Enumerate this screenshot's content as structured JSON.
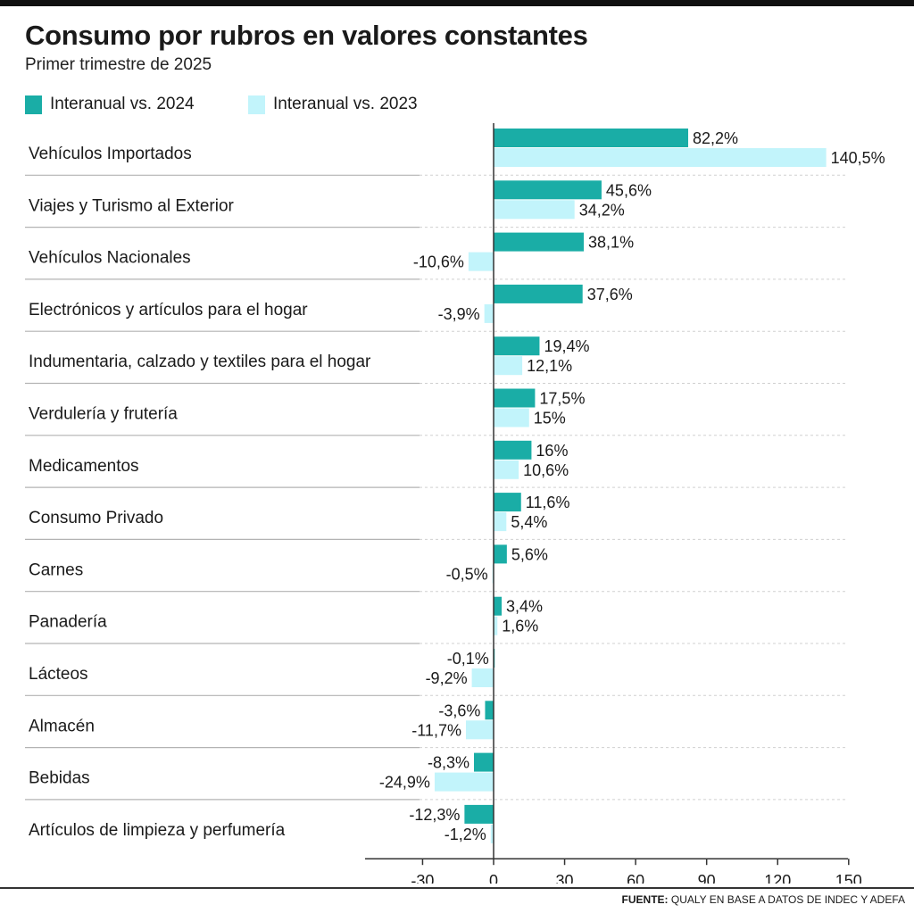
{
  "header": {
    "title": "Consumo por rubros en valores constantes",
    "subtitle": "Primer trimestre de 2025"
  },
  "footer": {
    "source_label": "FUENTE:",
    "source_text": "QUALY EN BASE A DATOS DE INDEC Y ADEFA"
  },
  "colors": {
    "series_2024": "#1aada6",
    "series_2023": "#c2f4fb",
    "axis": "#333333",
    "separator": "#b3b3b3"
  },
  "chart_data": {
    "type": "bar",
    "orientation": "horizontal",
    "categories": [
      "Vehículos Importados",
      "Viajes y Turismo al Exterior",
      "Vehículos Nacionales",
      "Electrónicos y artículos para el hogar",
      "Indumentaria, calzado y textiles para el hogar",
      "Verdulería y frutería",
      "Medicamentos",
      "Consumo Privado",
      "Carnes",
      "Panadería",
      "Lácteos",
      "Almacén",
      "Bebidas",
      "Artículos de limpieza y perfumería"
    ],
    "series": [
      {
        "name": "Interanual vs. 2024",
        "values": [
          82.2,
          45.6,
          38.1,
          37.6,
          19.4,
          17.5,
          16,
          11.6,
          5.6,
          3.4,
          -0.1,
          -3.6,
          -8.3,
          -12.3
        ],
        "labels": [
          "82,2%",
          "45,6%",
          "38,1%",
          "37,6%",
          "19,4%",
          "17,5%",
          "16%",
          "11,6%",
          "5,6%",
          "3,4%",
          "-0,1%",
          "-3,6%",
          "-8,3%",
          "-12,3%"
        ]
      },
      {
        "name": "Interanual vs. 2023",
        "values": [
          140.5,
          34.2,
          -10.6,
          -3.9,
          12.1,
          15,
          10.6,
          5.4,
          -0.5,
          1.6,
          -9.2,
          -11.7,
          -24.9,
          -1.2
        ],
        "labels": [
          "140,5%",
          "34,2%",
          "-10,6%",
          "-3,9%",
          "12,1%",
          "15%",
          "10,6%",
          "5,4%",
          "-0,5%",
          "1,6%",
          "-9,2%",
          "-11,7%",
          "-24,9%",
          "-1,2%"
        ]
      }
    ],
    "xlim": [
      -54,
      150
    ],
    "xticks": [
      -30,
      0,
      30,
      60,
      90,
      120,
      150
    ],
    "xtick_labels": [
      "-30",
      "0",
      "30",
      "60",
      "90",
      "120",
      "150"
    ],
    "grid": false,
    "legend_position": "top-left"
  }
}
